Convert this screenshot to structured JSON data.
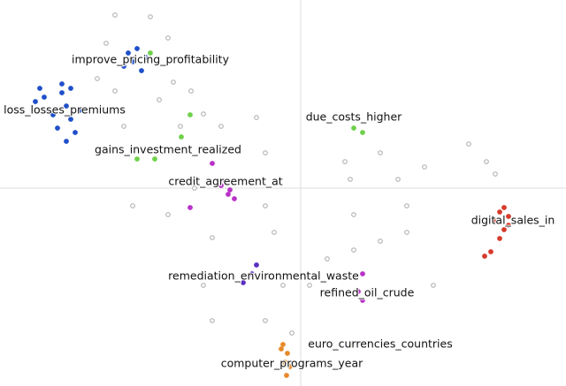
{
  "chart_data": {
    "type": "scatter",
    "xlim": [
      -1.7,
      1.5
    ],
    "ylim": [
      -1.12,
      1.065
    ],
    "origin_lines": true,
    "series": [
      {
        "color": "#aaaaaa",
        "x": [
          -1.05,
          -0.85,
          -1.1,
          -0.75,
          -0.72,
          -0.62,
          -0.55,
          -0.8,
          -0.68,
          -1.15,
          -1.05,
          -1.0,
          -0.45,
          -0.25,
          -0.2,
          -0.6,
          -0.95,
          -0.75,
          -0.5,
          -0.2,
          -0.15,
          -0.1,
          -0.55,
          -0.5,
          -0.2,
          -0.05,
          0.05,
          0.25,
          0.28,
          0.45,
          0.55,
          0.6,
          0.7,
          0.95,
          1.05,
          0.3,
          0.3,
          0.45,
          0.75,
          0.6,
          1.1,
          0.15
        ],
        "values": [
          0.98,
          0.97,
          0.82,
          0.85,
          0.6,
          0.55,
          0.42,
          0.5,
          0.35,
          0.62,
          0.55,
          0.35,
          0.35,
          0.4,
          0.2,
          0.0,
          -0.1,
          -0.15,
          -0.28,
          -0.1,
          -0.25,
          -0.55,
          -0.55,
          -0.75,
          -0.75,
          -0.82,
          -0.55,
          0.15,
          0.05,
          0.2,
          0.05,
          -0.1,
          0.12,
          0.25,
          0.15,
          -0.15,
          -0.35,
          -0.3,
          -0.55,
          -0.25,
          0.08,
          -0.4
        ]
      },
      {
        "color": "#1f4fc8",
        "x": [
          -1.475,
          -1.45,
          -1.425,
          -1.4,
          -1.35,
          -1.325,
          -1.3,
          -1.275,
          -1.375,
          -1.325,
          -1.5,
          -1.25,
          -0.975,
          -0.95,
          -0.925,
          -0.9,
          -0.875,
          -1.0,
          -1.35,
          -1.3
        ],
        "values": [
          0.565,
          0.515,
          0.44,
          0.415,
          0.54,
          0.465,
          0.39,
          0.315,
          0.34,
          0.265,
          0.49,
          0.44,
          0.765,
          0.715,
          0.79,
          0.665,
          0.74,
          0.69,
          0.59,
          0.565
        ]
      },
      {
        "color": "#b832c8",
        "x": [
          -0.425,
          -0.4,
          -0.45,
          -0.375,
          -0.41,
          -0.5,
          -0.625,
          0.35,
          0.325,
          0.35
        ],
        "values": [
          0.04,
          -0.01,
          0.015,
          -0.06,
          -0.035,
          0.14,
          -0.11,
          -0.485,
          -0.585,
          -0.635
        ]
      },
      {
        "color": "#5a2fc0",
        "x": [
          -0.25,
          -0.275,
          -0.325
        ],
        "values": [
          -0.435,
          -0.485,
          -0.535
        ]
      },
      {
        "color": "#d63a2a",
        "x": [
          1.15,
          1.175,
          1.125,
          1.1,
          1.15,
          1.125,
          1.075,
          1.04,
          1.175
        ],
        "values": [
          -0.11,
          -0.16,
          -0.135,
          -0.185,
          -0.235,
          -0.285,
          -0.36,
          -0.385,
          -0.21
        ]
      },
      {
        "color": "#e88a2a",
        "x": [
          -0.1,
          -0.075,
          -0.09,
          -0.06,
          -0.08,
          -0.11
        ],
        "values": [
          -0.885,
          -0.935,
          -0.985,
          -1.01,
          -1.06,
          -0.91
        ]
      },
      {
        "color": "#6fd04a",
        "x": [
          -0.85,
          -0.625,
          -0.675,
          -0.925,
          -0.825,
          0.3,
          0.35,
          0.29
        ],
        "values": [
          0.765,
          0.415,
          0.29,
          0.165,
          0.165,
          0.34,
          0.315,
          -0.885
        ]
      }
    ],
    "annotations": [
      {
        "text": "improve_pricing_profitability",
        "x": -0.85,
        "y": 0.725
      },
      {
        "text": "loss_losses_premiums",
        "x": -1.335,
        "y": 0.44
      },
      {
        "text": "gains_investment_realized",
        "x": -0.75,
        "y": 0.215
      },
      {
        "text": "due_costs_higher",
        "x": 0.3,
        "y": 0.4
      },
      {
        "text": "credit_agreement_at",
        "x": -0.425,
        "y": 0.035
      },
      {
        "text": "digital_sales_in",
        "x": 1.2,
        "y": -0.185
      },
      {
        "text": "remediation_environmental_waste",
        "x": -0.21,
        "y": -0.5
      },
      {
        "text": "refined_oil_crude",
        "x": 0.375,
        "y": -0.595
      },
      {
        "text": "euro_currencies_countries",
        "x": 0.45,
        "y": -0.885
      },
      {
        "text": "computer_programs_year",
        "x": -0.05,
        "y": -0.995
      }
    ]
  }
}
